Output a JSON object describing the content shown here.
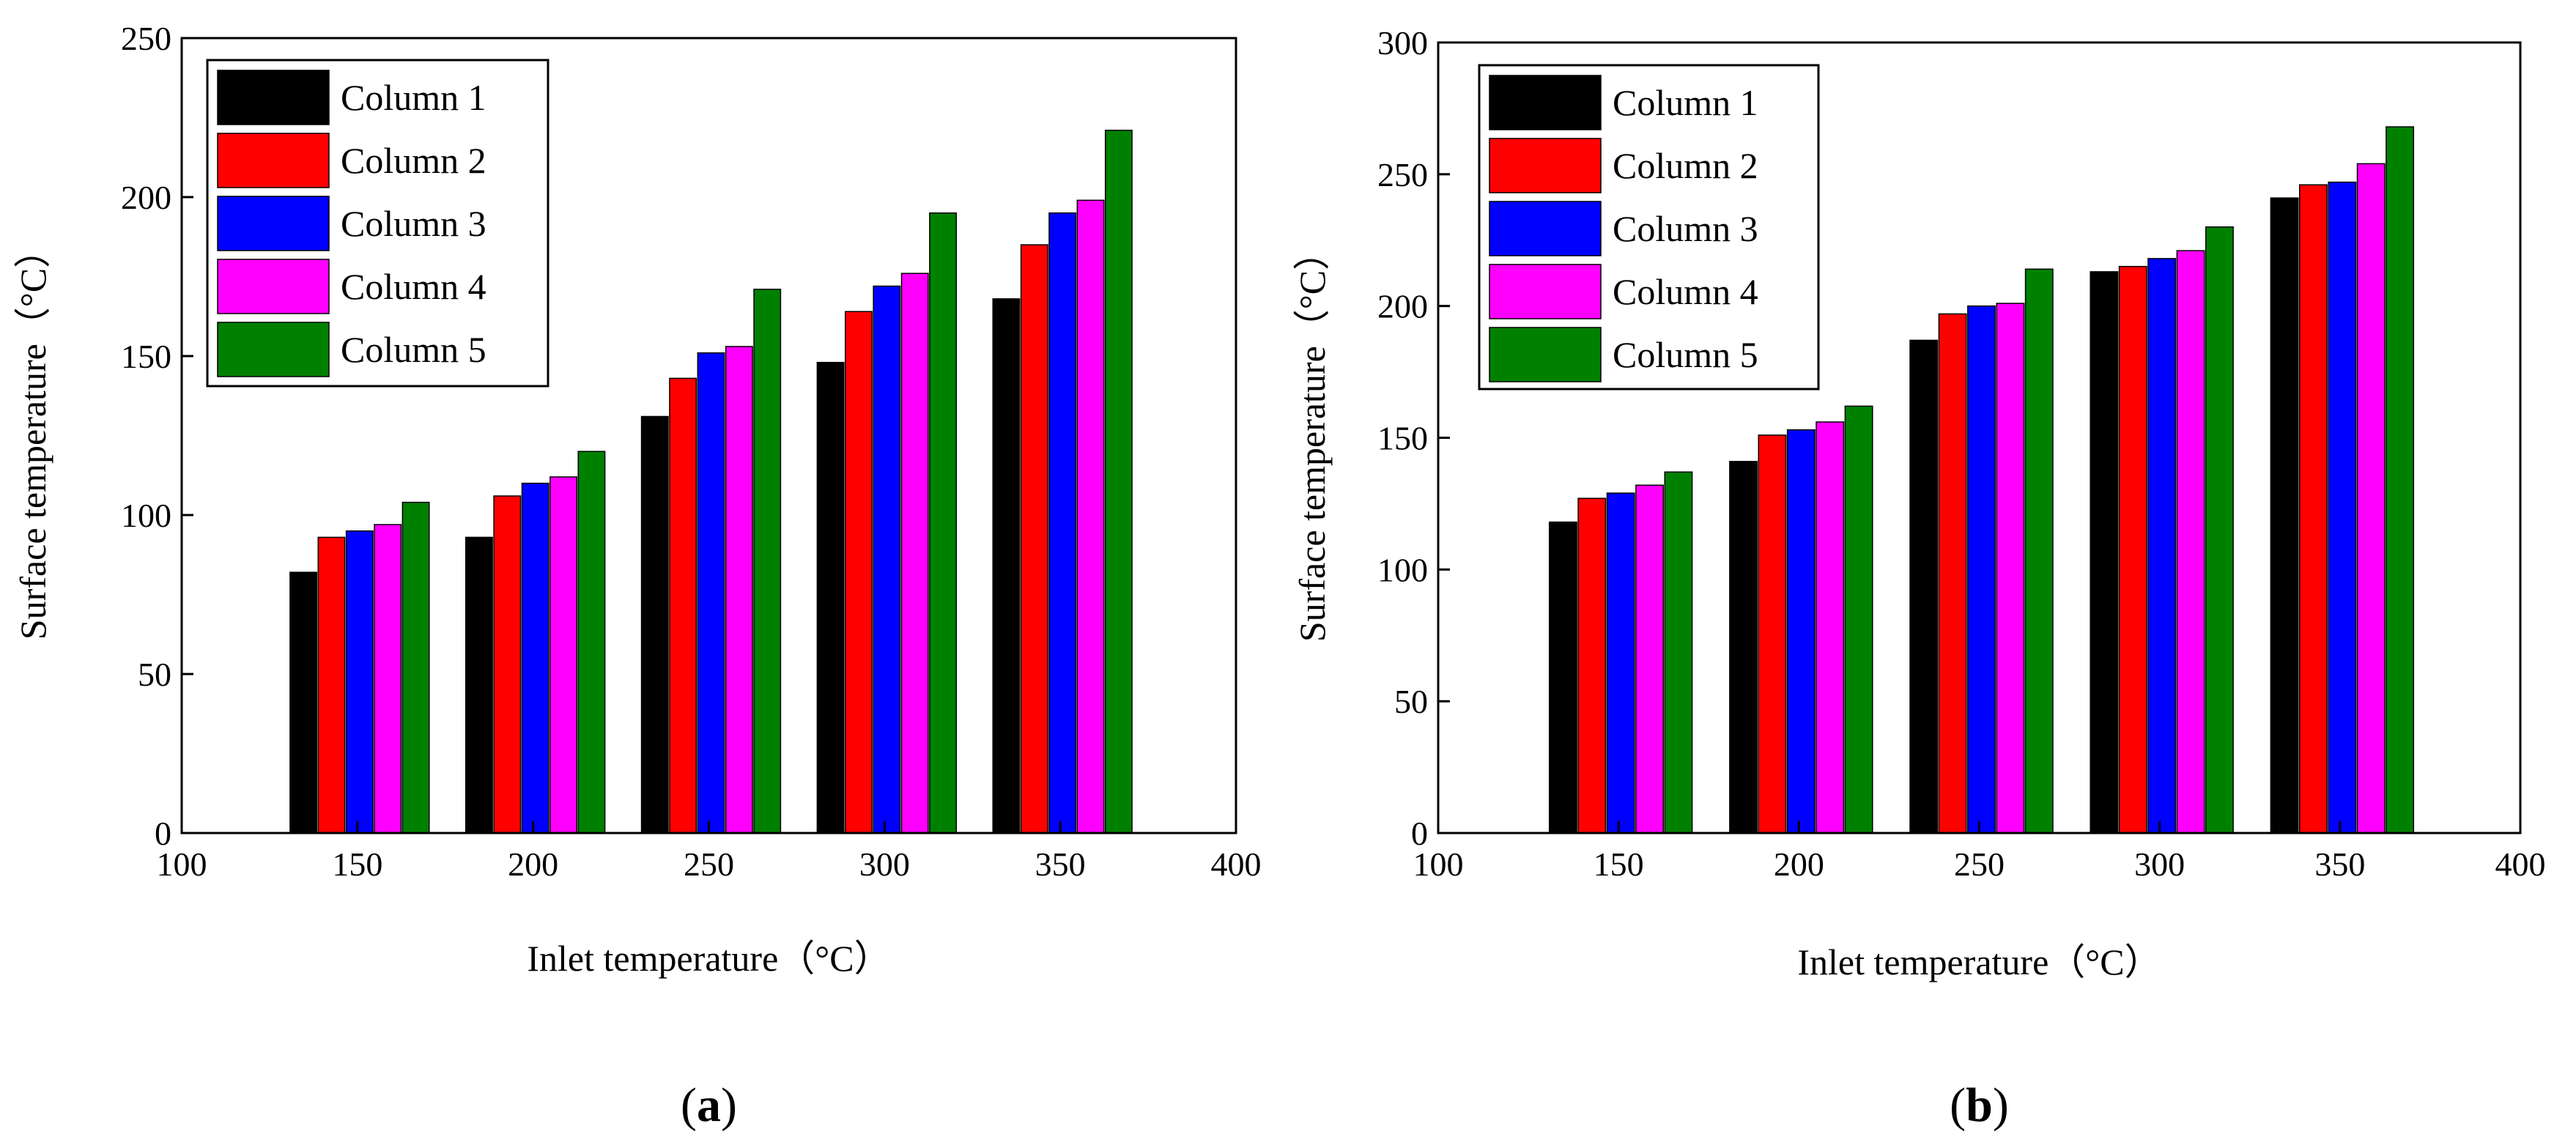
{
  "chart_data": [
    {
      "type": "bar",
      "panel_label": "a",
      "categories": [
        150,
        200,
        250,
        300,
        350
      ],
      "xlim": [
        100,
        400
      ],
      "xticks": [
        100,
        150,
        200,
        250,
        300,
        350,
        400
      ],
      "ylim": [
        0,
        250
      ],
      "yticks": [
        0,
        50,
        100,
        150,
        200,
        250
      ],
      "xlabel": "Inlet temperature（°C）",
      "ylabel": "Surface temperature（°C）",
      "legend_position": "top-left",
      "grid": false,
      "series": [
        {
          "name": "Column 1",
          "color": "#000000",
          "values": [
            82,
            93,
            131,
            148,
            168
          ]
        },
        {
          "name": "Column 2",
          "color": "#ff0000",
          "values": [
            93,
            106,
            143,
            164,
            185
          ]
        },
        {
          "name": "Column 3",
          "color": "#0000ff",
          "values": [
            95,
            110,
            151,
            172,
            195
          ]
        },
        {
          "name": "Column 4",
          "color": "#ff00ff",
          "values": [
            97,
            112,
            153,
            176,
            199
          ]
        },
        {
          "name": "Column 5",
          "color": "#008000",
          "values": [
            104,
            120,
            171,
            195,
            221
          ]
        }
      ]
    },
    {
      "type": "bar",
      "panel_label": "b",
      "categories": [
        150,
        200,
        250,
        300,
        350
      ],
      "xlim": [
        100,
        400
      ],
      "xticks": [
        100,
        150,
        200,
        250,
        300,
        350,
        400
      ],
      "ylim": [
        0,
        300
      ],
      "yticks": [
        0,
        50,
        100,
        150,
        200,
        250,
        300
      ],
      "xlabel": "Inlet temperature（°C）",
      "ylabel": "Surface temperature（°C）",
      "legend_position": "top-left",
      "grid": false,
      "series": [
        {
          "name": "Column 1",
          "color": "#000000",
          "values": [
            118,
            141,
            187,
            213,
            241
          ]
        },
        {
          "name": "Column 2",
          "color": "#ff0000",
          "values": [
            127,
            151,
            197,
            215,
            246
          ]
        },
        {
          "name": "Column 3",
          "color": "#0000ff",
          "values": [
            129,
            153,
            200,
            218,
            247
          ]
        },
        {
          "name": "Column 4",
          "color": "#ff00ff",
          "values": [
            132,
            156,
            201,
            221,
            254
          ]
        },
        {
          "name": "Column 5",
          "color": "#008000",
          "values": [
            137,
            162,
            214,
            230,
            268
          ]
        }
      ]
    }
  ]
}
